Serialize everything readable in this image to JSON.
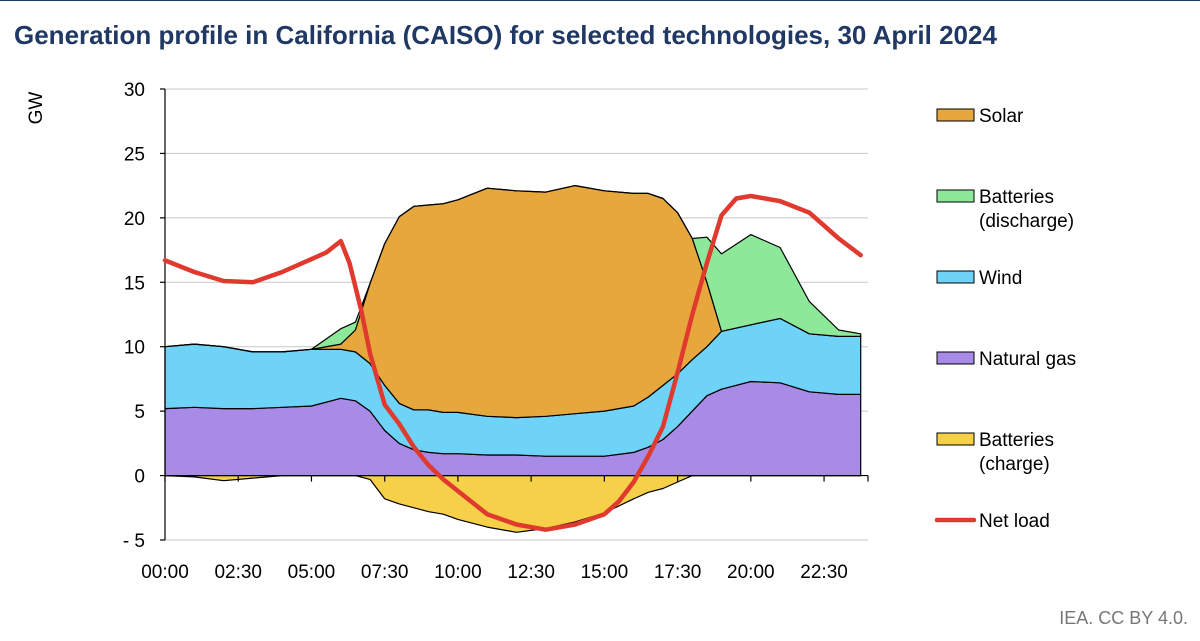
{
  "title": "Generation profile in California (CAISO) for selected technologies, 30 April 2024",
  "credit": "IEA. CC BY 4.0.",
  "chart_data": {
    "type": "area",
    "title": "Generation profile in California (CAISO) for selected technologies, 30 April 2024",
    "ylabel": "GW",
    "xlabel": "",
    "ylim": [
      -5,
      30
    ],
    "yticks": [
      30,
      25,
      20,
      15,
      10,
      5,
      0,
      -5
    ],
    "ytick_labels": [
      "30",
      "25",
      "20",
      "15",
      "10",
      "5",
      "0",
      "- 5"
    ],
    "xtick_labels": [
      "00:00",
      "02:30",
      "05:00",
      "07:30",
      "10:00",
      "12:30",
      "15:00",
      "17:30",
      "20:00",
      "22:30"
    ],
    "xtick_hours": [
      0,
      2.5,
      5,
      7.5,
      10,
      12.5,
      15,
      17.5,
      20,
      22.5
    ],
    "grid": true,
    "legend_position": "right",
    "x_hours": [
      0,
      1,
      2,
      3,
      4,
      5,
      6,
      6.5,
      7,
      7.5,
      8,
      8.5,
      9,
      9.5,
      10,
      11,
      12,
      13,
      14,
      15,
      16,
      16.5,
      17,
      17.5,
      18,
      18.5,
      19,
      20,
      21,
      22,
      23,
      23.75
    ],
    "series": [
      {
        "name": "Natural gas",
        "color": "#a78be6",
        "values": [
          5.2,
          5.3,
          5.2,
          5.2,
          5.3,
          5.4,
          6.0,
          5.8,
          5.0,
          3.5,
          2.5,
          2.0,
          1.8,
          1.7,
          1.7,
          1.6,
          1.6,
          1.5,
          1.5,
          1.5,
          1.8,
          2.2,
          2.8,
          3.8,
          5.0,
          6.2,
          6.7,
          7.3,
          7.2,
          6.5,
          6.3,
          6.3
        ]
      },
      {
        "name": "Wind",
        "color": "#6fd3f7",
        "values": [
          4.8,
          4.9,
          4.8,
          4.4,
          4.3,
          4.4,
          3.8,
          3.8,
          3.7,
          3.5,
          3.1,
          3.1,
          3.3,
          3.2,
          3.2,
          3.0,
          2.9,
          3.1,
          3.3,
          3.5,
          3.6,
          3.9,
          4.2,
          4.1,
          4.0,
          3.8,
          4.5,
          4.4,
          5.0,
          4.5,
          4.5,
          4.5
        ]
      },
      {
        "name": "Solar",
        "color": "#e6a73c",
        "values": [
          0,
          0,
          0,
          0,
          0,
          0,
          0.4,
          1.7,
          6.2,
          11.0,
          14.5,
          15.8,
          15.9,
          16.2,
          16.5,
          17.7,
          17.6,
          17.4,
          17.7,
          17.1,
          16.5,
          15.8,
          14.5,
          12.5,
          9.4,
          5.0,
          0,
          0,
          0,
          0,
          0,
          0
        ]
      },
      {
        "name": "Batteries (discharge)",
        "color": "#8ee89a",
        "values": [
          0,
          0,
          0,
          0,
          0,
          0,
          1.2,
          0.6,
          0,
          0,
          0,
          0,
          0,
          0,
          0,
          0,
          0,
          0,
          0,
          0,
          0,
          0,
          0,
          0,
          0,
          3.5,
          6.0,
          7.0,
          5.5,
          2.5,
          0.5,
          0.2
        ]
      },
      {
        "name": "Batteries (charge)",
        "color": "#f6d048",
        "negative": true,
        "values": [
          0,
          -0.1,
          -0.4,
          -0.2,
          0,
          0,
          0,
          0,
          -0.3,
          -1.8,
          -2.2,
          -2.5,
          -2.8,
          -3.0,
          -3.4,
          -4.0,
          -4.4,
          -4.1,
          -3.6,
          -2.9,
          -1.8,
          -1.3,
          -1.0,
          -0.5,
          0,
          0,
          0,
          0,
          0,
          0,
          0,
          0
        ]
      }
    ],
    "net_load": {
      "name": "Net load",
      "color": "#e03a2f",
      "x_hours": [
        0,
        1,
        2,
        3,
        4,
        5,
        5.5,
        6,
        6.3,
        6.7,
        7,
        7.5,
        8,
        8.5,
        9,
        9.5,
        10,
        11,
        12,
        13,
        14,
        15,
        15.5,
        16,
        16.5,
        17,
        17.5,
        18,
        18.5,
        19,
        19.5,
        20,
        21,
        22,
        23,
        23.75
      ],
      "values": [
        16.7,
        15.8,
        15.1,
        15.0,
        15.8,
        16.8,
        17.3,
        18.2,
        16.5,
        12.8,
        9.5,
        5.5,
        4.0,
        2.2,
        0.8,
        -0.3,
        -1.2,
        -3.0,
        -3.8,
        -4.2,
        -3.8,
        -3.0,
        -2.0,
        -0.5,
        1.5,
        3.8,
        8.0,
        12.5,
        16.5,
        20.2,
        21.5,
        21.7,
        21.3,
        20.4,
        18.4,
        17.1
      ]
    },
    "legend": [
      {
        "label": "Solar",
        "label_lines": [
          "Solar"
        ],
        "color": "#e6a73c",
        "kind": "area"
      },
      {
        "label": "Batteries (discharge)",
        "label_lines": [
          "Batteries",
          "(discharge)"
        ],
        "color": "#8ee89a",
        "kind": "area"
      },
      {
        "label": "Wind",
        "label_lines": [
          "Wind"
        ],
        "color": "#6fd3f7",
        "kind": "area"
      },
      {
        "label": "Natural gas",
        "label_lines": [
          "Natural gas"
        ],
        "color": "#a78be6",
        "kind": "area"
      },
      {
        "label": "Batteries (charge)",
        "label_lines": [
          "Batteries",
          "(charge)"
        ],
        "color": "#f6d048",
        "kind": "area"
      },
      {
        "label": "Net load",
        "label_lines": [
          "Net load"
        ],
        "color": "#e03a2f",
        "kind": "line"
      }
    ]
  }
}
